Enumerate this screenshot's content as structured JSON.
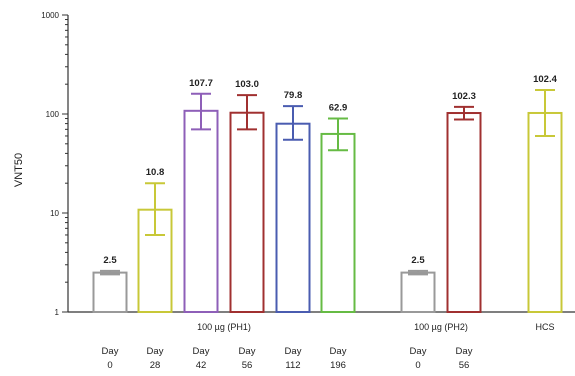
{
  "chart_data": {
    "type": "bar",
    "ylabel": "VNT50",
    "yscale": "log",
    "ylim": [
      1,
      1000
    ],
    "yticks": [
      "1",
      "10",
      "100",
      "1000"
    ],
    "groups": [
      {
        "label": "100 µg (PH1)",
        "category_index": [
          0,
          1,
          2,
          3,
          4,
          5
        ]
      },
      {
        "label": "100 µg (PH2)",
        "category_index": [
          6,
          7
        ]
      },
      {
        "label": "HCS",
        "category_index": [
          8
        ]
      }
    ],
    "categories": [
      {
        "line1": "Day",
        "line2": "0"
      },
      {
        "line1": "Day",
        "line2": "28"
      },
      {
        "line1": "Day",
        "line2": "42"
      },
      {
        "line1": "Day",
        "line2": "56"
      },
      {
        "line1": "Day",
        "line2": "112"
      },
      {
        "line1": "Day",
        "line2": "196"
      },
      {
        "line1": "Day",
        "line2": "0"
      },
      {
        "line1": "Day",
        "line2": "56"
      },
      {
        "line1": "",
        "line2": ""
      }
    ],
    "bars": [
      {
        "value": 2.5,
        "label": "2.5",
        "err_low": 2.4,
        "err_high": 2.6,
        "color": "#999999"
      },
      {
        "value": 10.8,
        "label": "10.8",
        "err_low": 6,
        "err_high": 20,
        "color": "#c8c838"
      },
      {
        "value": 107.7,
        "label": "107.7",
        "err_low": 70,
        "err_high": 160,
        "color": "#8e5fb8"
      },
      {
        "value": 103.0,
        "label": "103.0",
        "err_low": 70,
        "err_high": 155,
        "color": "#a03030"
      },
      {
        "value": 79.8,
        "label": "79.8",
        "err_low": 55,
        "err_high": 120,
        "color": "#4a5cb0"
      },
      {
        "value": 62.9,
        "label": "62.9",
        "err_low": 43,
        "err_high": 90,
        "color": "#66bb44"
      },
      {
        "value": 2.5,
        "label": "2.5",
        "err_low": 2.4,
        "err_high": 2.6,
        "color": "#999999"
      },
      {
        "value": 102.3,
        "label": "102.3",
        "err_low": 88,
        "err_high": 118,
        "color": "#a03030"
      },
      {
        "value": 102.4,
        "label": "102.4",
        "err_low": 60,
        "err_high": 175,
        "color": "#c8c838"
      }
    ]
  }
}
